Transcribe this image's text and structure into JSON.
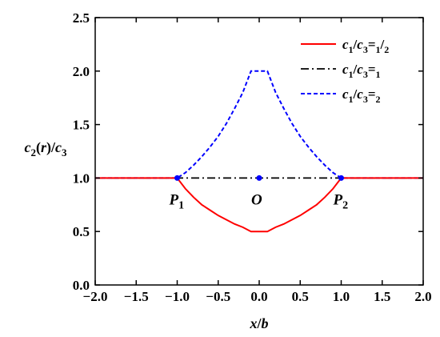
{
  "chart_data": {
    "type": "line",
    "xlabel": "x/b",
    "ylabel": "c2(r)/c3",
    "xlim": [
      -2.0,
      2.0
    ],
    "ylim": [
      0.0,
      2.5
    ],
    "xticks": [
      "−2.0",
      "−1.5",
      "−1.0",
      "−0.5",
      "0.0",
      "0.5",
      "1.0",
      "1.5",
      "2.0"
    ],
    "yticks": [
      "0.0",
      "0.5",
      "1.0",
      "1.5",
      "2.0",
      "2.5"
    ],
    "legend_position": "top-right",
    "grid": false,
    "series": [
      {
        "name": "c1/c3=1/2",
        "color": "#ff0000",
        "style": "solid",
        "x": [
          -2.0,
          -1.0,
          -0.9,
          -0.8,
          -0.7,
          -0.6,
          -0.5,
          -0.4,
          -0.3,
          -0.2,
          -0.1,
          0.1,
          0.2,
          0.3,
          0.4,
          0.5,
          0.6,
          0.7,
          0.8,
          0.9,
          1.0,
          2.0
        ],
        "y": [
          1.0,
          1.0,
          0.9,
          0.82,
          0.75,
          0.7,
          0.65,
          0.61,
          0.57,
          0.54,
          0.5,
          0.5,
          0.54,
          0.57,
          0.61,
          0.65,
          0.7,
          0.75,
          0.82,
          0.9,
          1.0,
          1.0
        ]
      },
      {
        "name": "c1/c3=1",
        "color": "#000000",
        "style": "dashdot",
        "x": [
          -2.0,
          2.0
        ],
        "y": [
          1.0,
          1.0
        ]
      },
      {
        "name": "c1/c3=2",
        "color": "#0000ff",
        "style": "dashed",
        "x": [
          -2.0,
          -1.0,
          -0.9,
          -0.8,
          -0.7,
          -0.6,
          -0.5,
          -0.4,
          -0.3,
          -0.2,
          -0.1,
          0.1,
          0.2,
          0.3,
          0.4,
          0.5,
          0.6,
          0.7,
          0.8,
          0.9,
          1.0,
          2.0
        ],
        "y": [
          1.0,
          1.0,
          1.05,
          1.12,
          1.2,
          1.29,
          1.39,
          1.51,
          1.65,
          1.8,
          2.0,
          2.0,
          1.8,
          1.65,
          1.51,
          1.39,
          1.29,
          1.2,
          1.12,
          1.05,
          1.0,
          1.0
        ]
      }
    ],
    "points": [
      {
        "label": "P",
        "sub": "1",
        "x": -1.0,
        "y": 1.0
      },
      {
        "label": "O",
        "sub": "",
        "x": 0.0,
        "y": 1.0
      },
      {
        "label": "P",
        "sub": "2",
        "x": 1.0,
        "y": 1.0
      }
    ],
    "point_color": "#0000ff"
  }
}
